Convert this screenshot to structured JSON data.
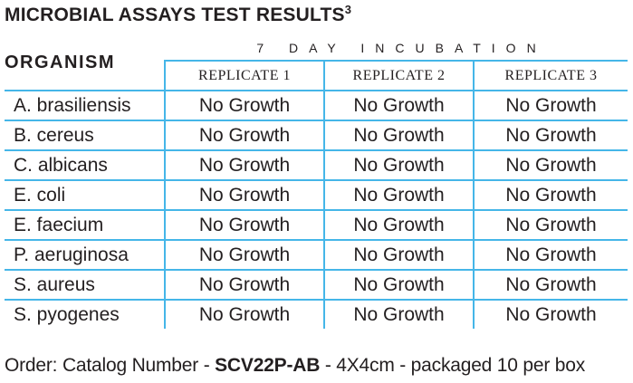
{
  "title": {
    "text": "MICROBIAL ASSAYS TEST RESULTS",
    "superscript": "3"
  },
  "table": {
    "organism_header": "ORGANISM",
    "incubation_header": "7 DAY INCUBATION",
    "replicate_headers": [
      "REPLICATE 1",
      "REPLICATE 2",
      "REPLICATE 3"
    ],
    "rows": [
      {
        "organism": "A. brasiliensis",
        "results": [
          "No Growth",
          "No Growth",
          "No Growth"
        ]
      },
      {
        "organism": "B. cereus",
        "results": [
          "No Growth",
          "No Growth",
          "No Growth"
        ]
      },
      {
        "organism": "C. albicans",
        "results": [
          "No Growth",
          "No Growth",
          "No Growth"
        ]
      },
      {
        "organism": "E. coli",
        "results": [
          "No Growth",
          "No Growth",
          "No Growth"
        ]
      },
      {
        "organism": "E. faecium",
        "results": [
          "No Growth",
          "No Growth",
          "No Growth"
        ]
      },
      {
        "organism": "P. aeruginosa",
        "results": [
          "No Growth",
          "No Growth",
          "No Growth"
        ]
      },
      {
        "organism": "S. aureus",
        "results": [
          "No Growth",
          "No Growth",
          "No Growth"
        ]
      },
      {
        "organism": "S. pyogenes",
        "results": [
          "No Growth",
          "No Growth",
          "No Growth"
        ]
      }
    ]
  },
  "footer": {
    "prefix": "Order: Catalog Number - ",
    "catalog_number": "SCV22P-AB",
    "suffix": " - 4X4cm - packaged 10 per box"
  },
  "colors": {
    "border_blue": "#45b6e8",
    "text_black": "#231f20"
  }
}
